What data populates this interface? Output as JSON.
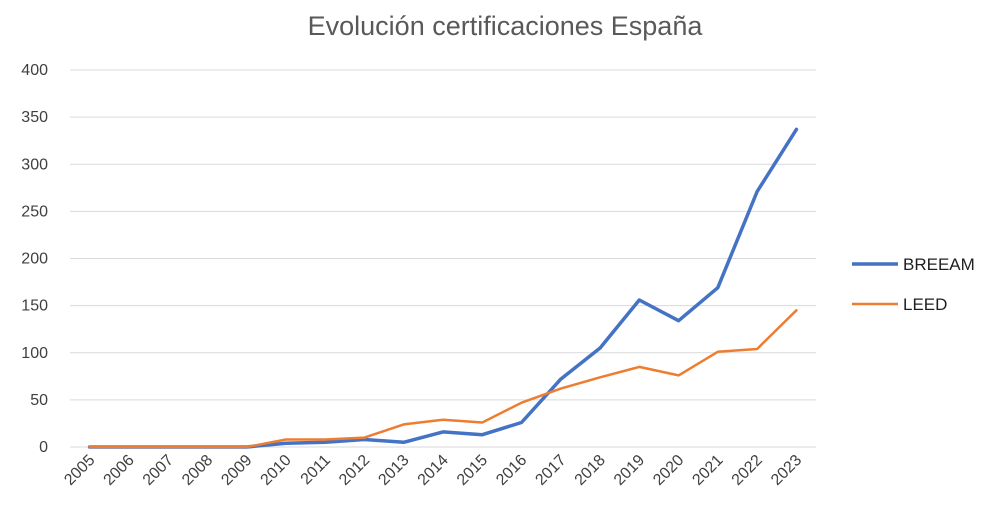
{
  "chart_data": {
    "type": "line",
    "title": "Evolución certificaciones España",
    "xlabel": "",
    "ylabel": "",
    "categories": [
      "2005",
      "2006",
      "2007",
      "2008",
      "2009",
      "2010",
      "2011",
      "2012",
      "2013",
      "2014",
      "2015",
      "2016",
      "2017",
      "2018",
      "2019",
      "2020",
      "2021",
      "2022",
      "2023"
    ],
    "ylim": [
      0,
      400
    ],
    "yticks": [
      0,
      50,
      100,
      150,
      200,
      250,
      300,
      350,
      400
    ],
    "grid": true,
    "legend_position": "right",
    "series": [
      {
        "name": "BREEAM",
        "color": "#4472c4",
        "values": [
          0,
          0,
          0,
          0,
          0,
          4,
          5,
          8,
          5,
          16,
          13,
          26,
          72,
          105,
          156,
          134,
          169,
          271,
          337
        ]
      },
      {
        "name": "LEED",
        "color": "#ed7d31",
        "values": [
          0,
          0,
          0,
          0,
          0,
          8,
          8,
          10,
          24,
          29,
          26,
          47,
          62,
          74,
          85,
          76,
          101,
          104,
          145
        ]
      }
    ]
  }
}
